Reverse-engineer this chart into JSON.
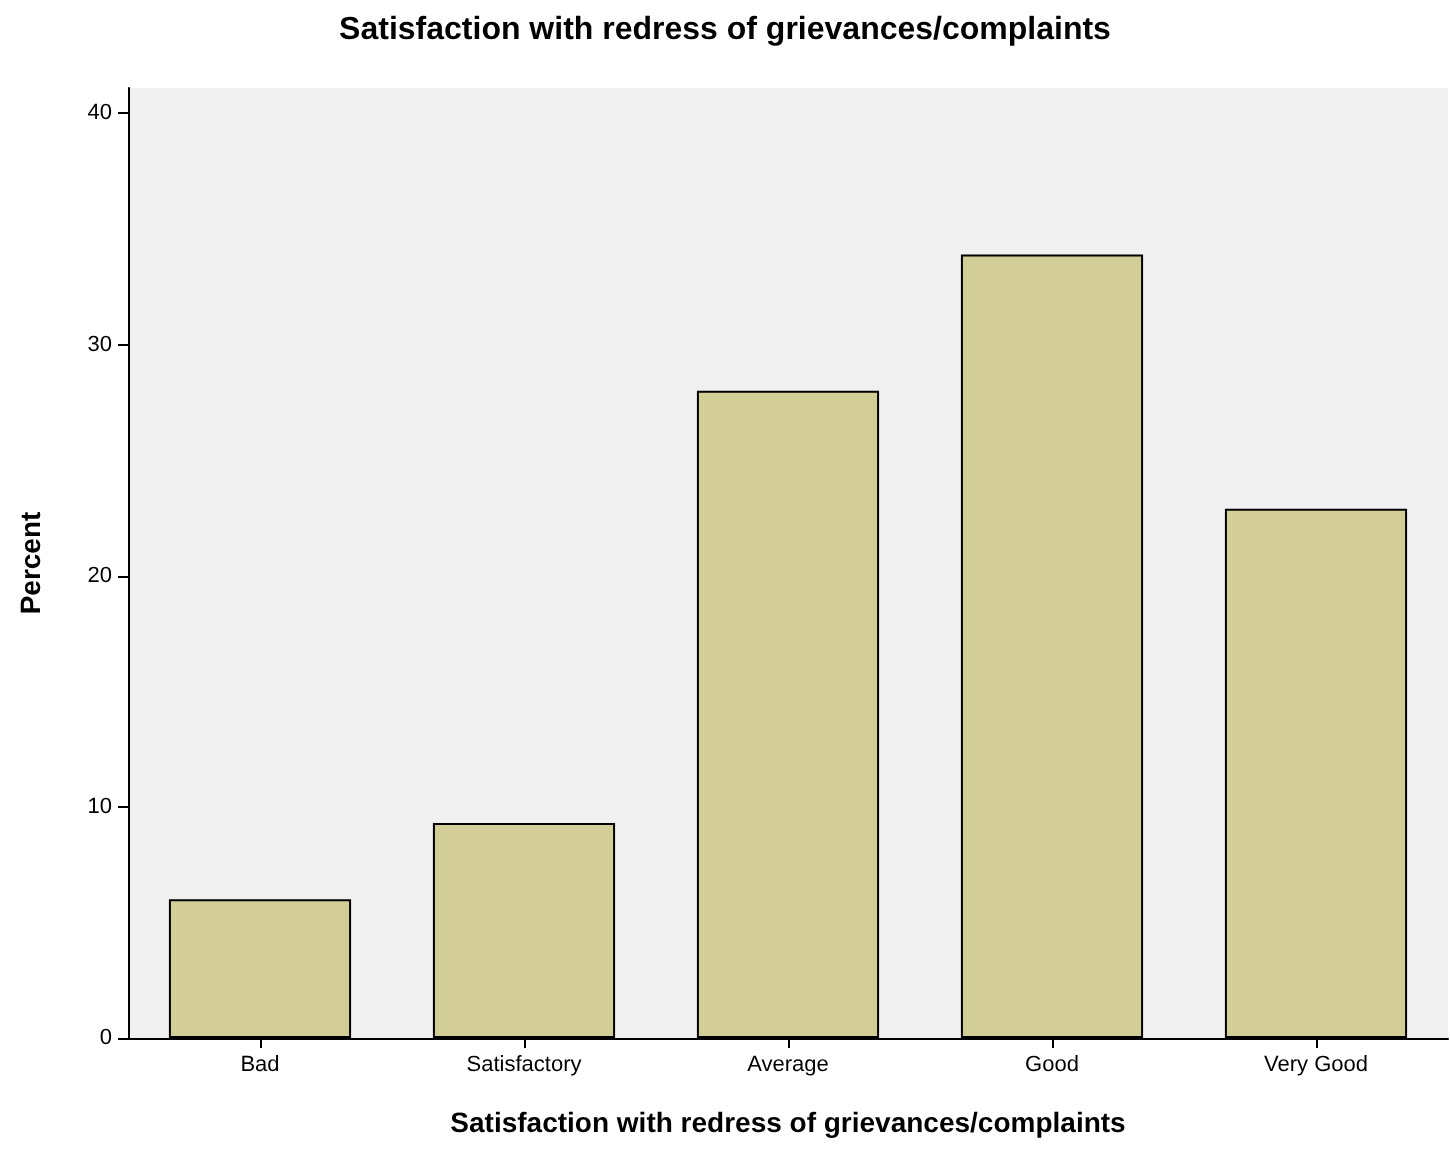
{
  "chart_data": {
    "type": "bar",
    "title": "Satisfaction with redress of grievances/complaints",
    "xlabel": "Satisfaction with redress of grievances/complaints",
    "ylabel": "Percent",
    "categories": [
      "Bad",
      "Satisfactory",
      "Average",
      "Good",
      "Very Good"
    ],
    "values": [
      6.0,
      9.3,
      28.0,
      33.9,
      22.9
    ],
    "color": "#d3ce97",
    "ylim": [
      0,
      41.1
    ],
    "yticks": [
      0,
      10,
      20,
      30,
      40
    ],
    "grid": false
  }
}
